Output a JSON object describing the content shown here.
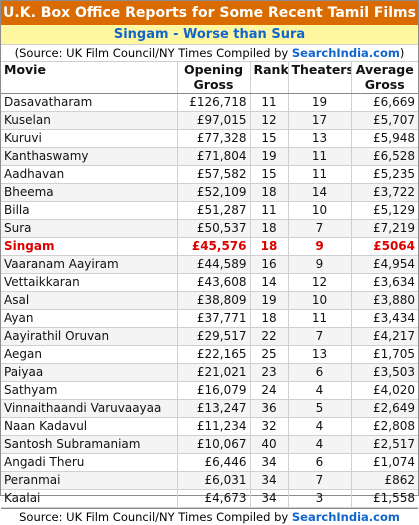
{
  "title": "U.K. Box Office Reports for Some Recent Tamil Films",
  "subtitle": "Singam - Worse than Sura",
  "source": {
    "prefix": "(Source: UK Film Council/NY Times  Compiled by ",
    "link": "SearchIndia.com",
    "suffix": ")"
  },
  "headers": {
    "movie": "Movie",
    "opening_top": "Opening",
    "opening_bottom": "Gross",
    "rank": "Rank",
    "theaters": "Theaters",
    "average_top": "Average",
    "average_bottom": "Gross"
  },
  "highlight_color": "#dd0000",
  "rows": [
    {
      "movie": "Dasavatharam",
      "gross": "£126,718",
      "rank": "11",
      "theaters": "19",
      "average": "£6,669"
    },
    {
      "movie": "Kuselan",
      "gross": "£97,015",
      "rank": "12",
      "theaters": "17",
      "average": "£5,707"
    },
    {
      "movie": "Kuruvi",
      "gross": "£77,328",
      "rank": "15",
      "theaters": "13",
      "average": "£5,948"
    },
    {
      "movie": "Kanthaswamy",
      "gross": "£71,804",
      "rank": "19",
      "theaters": "11",
      "average": "£6,528"
    },
    {
      "movie": "Aadhavan",
      "gross": "£57,582",
      "rank": "15",
      "theaters": "11",
      "average": "£5,235"
    },
    {
      "movie": "Bheema",
      "gross": "£52,109",
      "rank": "18",
      "theaters": "14",
      "average": "£3,722"
    },
    {
      "movie": "Billa",
      "gross": "£51,287",
      "rank": "11",
      "theaters": "10",
      "average": "£5,129"
    },
    {
      "movie": "Sura",
      "gross": "£50,537",
      "rank": "18",
      "theaters": "7",
      "average": "£7,219"
    },
    {
      "movie": "Singam",
      "gross": "£45,576",
      "rank": "18",
      "theaters": "9",
      "average": "£5064",
      "highlight": true
    },
    {
      "movie": "Vaaranam Aayiram",
      "gross": "£44,589",
      "rank": "16",
      "theaters": "9",
      "average": "£4,954"
    },
    {
      "movie": "Vettaikkaran",
      "gross": "£43,608",
      "rank": "14",
      "theaters": "12",
      "average": "£3,634"
    },
    {
      "movie": "Asal",
      "gross": "£38,809",
      "rank": "19",
      "theaters": "10",
      "average": "£3,880"
    },
    {
      "movie": "Ayan",
      "gross": "£37,771",
      "rank": "18",
      "theaters": "11",
      "average": "£3,434"
    },
    {
      "movie": "Aayirathil Oruvan",
      "gross": "£29,517",
      "rank": "22",
      "theaters": "7",
      "average": "£4,217"
    },
    {
      "movie": "Aegan",
      "gross": "£22,165",
      "rank": "25",
      "theaters": "13",
      "average": "£1,705"
    },
    {
      "movie": "Paiyaa",
      "gross": "£21,021",
      "rank": "23",
      "theaters": "6",
      "average": "£3,503"
    },
    {
      "movie": "Sathyam",
      "gross": "£16,079",
      "rank": "24",
      "theaters": "4",
      "average": "£4,020"
    },
    {
      "movie": "Vinnaithaandi Varuvaayaa",
      "gross": "£13,247",
      "rank": "36",
      "theaters": "5",
      "average": "£2,649"
    },
    {
      "movie": "Naan Kadavul",
      "gross": "£11,234",
      "rank": "32",
      "theaters": "4",
      "average": "£2,808"
    },
    {
      "movie": "Santosh Subramaniam",
      "gross": "£10,067",
      "rank": "40",
      "theaters": "4",
      "average": "£2,517"
    },
    {
      "movie": "Angadi Theru",
      "gross": "£6,446",
      "rank": "34",
      "theaters": "6",
      "average": "£1,074"
    },
    {
      "movie": "Peranmai",
      "gross": "£6,031",
      "rank": "34",
      "theaters": "7",
      "average": "£862"
    },
    {
      "movie": "Kaalai",
      "gross": "£4,673",
      "rank": "34",
      "theaters": "3",
      "average": "£1,558"
    }
  ],
  "footer": {
    "prefix": "Source: UK Film Council/NY Times  Compiled by ",
    "link": "SearchIndia.com"
  }
}
